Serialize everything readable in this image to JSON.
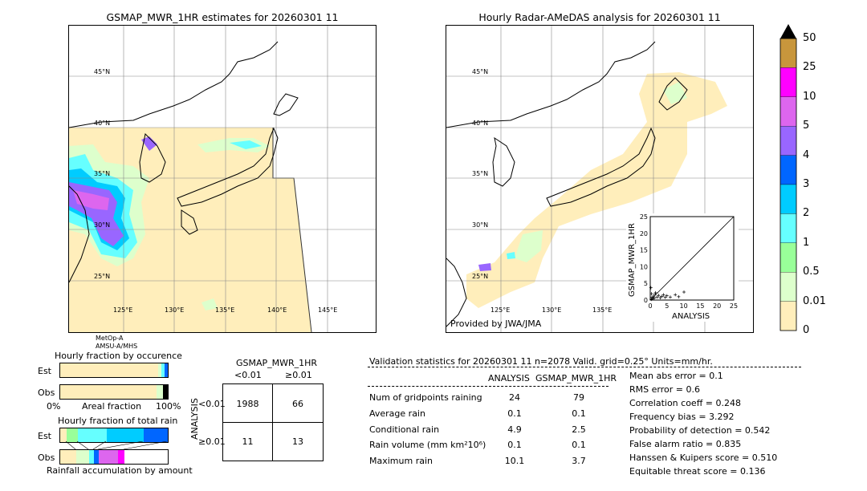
{
  "left_map": {
    "title": "GSMAP_MWR_1HR estimates for 20260301 11",
    "lat_labels": [
      "45°N",
      "40°N",
      "35°N",
      "30°N",
      "25°N"
    ],
    "lon_labels": [
      "125°E",
      "130°E",
      "135°E",
      "140°E",
      "145°E"
    ],
    "sensor_lines": [
      "MetOp-A",
      "AMSU-A/MHS"
    ]
  },
  "right_map": {
    "title": "Hourly Radar-AMeDAS analysis for 20260301 11",
    "lat_labels": [
      "45°N",
      "40°N",
      "35°N",
      "30°N",
      "25°N"
    ],
    "lon_labels": [
      "125°E",
      "130°E",
      "135°E"
    ],
    "credit": "Provided by JWA/JMA"
  },
  "colorbar": {
    "labels": [
      "50",
      "25",
      "10",
      "5",
      "4",
      "3",
      "2",
      "1",
      "0.5",
      "0.01",
      "0"
    ],
    "colors": [
      "#c8963c",
      "#ff00ff",
      "#dd66ee",
      "#9966ff",
      "#0066ff",
      "#00ccff",
      "#66ffff",
      "#99ff99",
      "#ddffcc",
      "#ffeebb"
    ],
    "top_color": "#000000"
  },
  "occurrence": {
    "title": "Hourly fraction by occurence",
    "rows": [
      "Est",
      "Obs"
    ],
    "axis_left": "0%",
    "axis_mid": "Areal fraction",
    "axis_right": "100%"
  },
  "accumulation": {
    "title": "Hourly fraction of total rain",
    "rows": [
      "Est",
      "Obs"
    ],
    "footer": "Rainfall accumulation by amount"
  },
  "contingency": {
    "title": "GSMAP_MWR_1HR",
    "col_labels": [
      "<0.01",
      "≥0.01"
    ],
    "row_axis": "ANALYSIS",
    "row_labels": [
      "<0.01",
      "≥0.01"
    ],
    "cells": [
      [
        "1988",
        "66"
      ],
      [
        "11",
        "13"
      ]
    ]
  },
  "validation": {
    "header": "Validation statistics for 20260301 11  n=2078 Valid. grid=0.25° Units=mm/hr.",
    "col_analysis": "ANALYSIS",
    "col_gsmap": "GSMAP_MWR_1HR",
    "rows": [
      {
        "label": "Num of gridpoints raining",
        "analysis": "24",
        "gsmap": "79"
      },
      {
        "label": "Average rain",
        "analysis": "0.1",
        "gsmap": "0.1"
      },
      {
        "label": "Conditional rain",
        "analysis": "4.9",
        "gsmap": "2.5"
      },
      {
        "label": "Rain volume (mm km²10⁶)",
        "analysis": "0.1",
        "gsmap": "0.1"
      },
      {
        "label": "Maximum rain",
        "analysis": "10.1",
        "gsmap": "3.7"
      }
    ],
    "scores": [
      "Mean abs error =    0.1",
      "RMS error =    0.6",
      "Correlation coeff =  0.248",
      "Frequency bias =  3.292",
      "Probability of detection =  0.542",
      "False alarm ratio =  0.835",
      "Hanssen & Kuipers score =  0.510",
      "Equitable threat score =  0.136"
    ]
  },
  "chart_data": {
    "type": "scatter",
    "xlabel": "ANALYSIS",
    "ylabel": "GSMAP_MWR_1HR",
    "xlim": [
      0,
      25
    ],
    "ylim": [
      0,
      25
    ],
    "ticks": [
      "0",
      "5",
      "10",
      "15",
      "20",
      "25"
    ],
    "points": [
      [
        0.3,
        0.2
      ],
      [
        0.5,
        0.8
      ],
      [
        0.8,
        0.4
      ],
      [
        1.0,
        1.2
      ],
      [
        1.2,
        0.6
      ],
      [
        1.5,
        1.8
      ],
      [
        2.0,
        0.9
      ],
      [
        2.5,
        1.4
      ],
      [
        3.0,
        0.7
      ],
      [
        3.5,
        1.1
      ],
      [
        4.0,
        1.6
      ],
      [
        4.5,
        0.8
      ],
      [
        5.0,
        1.3
      ],
      [
        6.0,
        0.9
      ],
      [
        7.5,
        1.6
      ],
      [
        8.5,
        1.0
      ],
      [
        10.1,
        2.4
      ],
      [
        0.2,
        3.7
      ],
      [
        1.6,
        2.2
      ],
      [
        0.4,
        1.9
      ]
    ]
  }
}
